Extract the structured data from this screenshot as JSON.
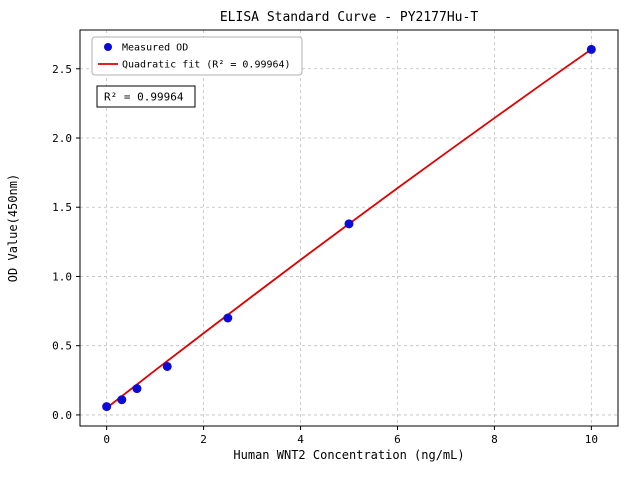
{
  "figure": {
    "background": "#ffffff"
  },
  "chart_data": {
    "type": "scatter",
    "title": "ELISA Standard Curve - PY2177Hu-T",
    "xlabel": "Human WNT2 Concentration (ng/mL)",
    "ylabel": "OD Value(450nm)",
    "xlim": [
      -0.55,
      10.55
    ],
    "ylim": [
      -0.08,
      2.78
    ],
    "x_ticks": [
      0,
      2,
      4,
      6,
      8,
      10
    ],
    "x_tick_labels": [
      "0",
      "2",
      "4",
      "6",
      "8",
      "10"
    ],
    "y_ticks": [
      0.0,
      0.5,
      1.0,
      1.5,
      2.0,
      2.5
    ],
    "y_tick_labels": [
      "0.0",
      "0.5",
      "1.0",
      "1.5",
      "2.0",
      "2.5"
    ],
    "grid": true,
    "grid_color": "#bfbfbf",
    "legend_position": "upper left",
    "series": [
      {
        "name": "Measured OD",
        "kind": "scatter",
        "color": "#0b0bd6",
        "x": [
          0,
          0.3125,
          0.625,
          1.25,
          2.5,
          5,
          10
        ],
        "y": [
          0.06,
          0.11,
          0.19,
          0.35,
          0.7,
          1.38,
          2.64
        ]
      },
      {
        "name": "Quadratic fit (R² = 0.99964)",
        "kind": "line",
        "color": "#e00000",
        "x": [
          0,
          1,
          2,
          3,
          4,
          5,
          6,
          7,
          8,
          9,
          10
        ],
        "y": [
          0.05,
          0.322,
          0.59,
          0.856,
          1.12,
          1.38,
          1.638,
          1.892,
          2.144,
          2.394,
          2.64
        ]
      }
    ],
    "annotation": {
      "text": "R² = 0.99964"
    },
    "r_squared": "0.99964"
  }
}
